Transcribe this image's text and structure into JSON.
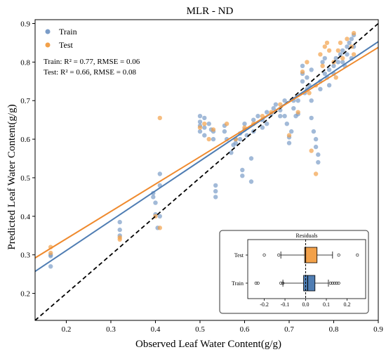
{
  "chart_data": {
    "type": "scatter",
    "title": "MLR - ND",
    "xlabel": "Observed Leaf Water Content(g/g)",
    "ylabel": "Predicted Leaf Water Content(g/g)",
    "xlim": [
      0.13,
      0.9
    ],
    "ylim": [
      0.13,
      0.91
    ],
    "xticks": [
      "0.2",
      "0.3",
      "0.4",
      "0.5",
      "0.6",
      "0.7",
      "0.8",
      "0.9"
    ],
    "yticks": [
      "0.2",
      "0.3",
      "0.4",
      "0.5",
      "0.6",
      "0.7",
      "0.8",
      "0.9"
    ],
    "legend": {
      "position": "top-left",
      "entries": [
        "Train",
        "Test"
      ]
    },
    "stats": {
      "train": "Train: R² = 0.77, RMSE = 0.06",
      "test": "Test: R² = 0.66, RMSE = 0.08"
    },
    "colors": {
      "train": "#7a9cc8",
      "test": "#f2a14a",
      "train_line": "#4f7db3",
      "test_line": "#ef8a2e",
      "identity": "#000000"
    },
    "fit_lines": {
      "train": {
        "x": [
          0.13,
          0.9
        ],
        "y": [
          0.257,
          0.853
        ]
      },
      "test": {
        "x": [
          0.13,
          0.9
        ],
        "y": [
          0.292,
          0.838
        ]
      },
      "identity": {
        "x": [
          0.13,
          0.9
        ],
        "y": [
          0.13,
          0.9
        ]
      }
    },
    "series": [
      {
        "name": "Train",
        "points": [
          [
            0.165,
            0.297
          ],
          [
            0.165,
            0.3
          ],
          [
            0.165,
            0.27
          ],
          [
            0.32,
            0.385
          ],
          [
            0.32,
            0.365
          ],
          [
            0.32,
            0.35
          ],
          [
            0.395,
            0.46
          ],
          [
            0.395,
            0.45
          ],
          [
            0.4,
            0.435
          ],
          [
            0.4,
            0.405
          ],
          [
            0.41,
            0.51
          ],
          [
            0.41,
            0.48
          ],
          [
            0.41,
            0.4
          ],
          [
            0.405,
            0.37
          ],
          [
            0.5,
            0.66
          ],
          [
            0.5,
            0.645
          ],
          [
            0.5,
            0.635
          ],
          [
            0.5,
            0.62
          ],
          [
            0.51,
            0.655
          ],
          [
            0.51,
            0.63
          ],
          [
            0.51,
            0.61
          ],
          [
            0.52,
            0.64
          ],
          [
            0.525,
            0.625
          ],
          [
            0.53,
            0.62
          ],
          [
            0.53,
            0.6
          ],
          [
            0.535,
            0.48
          ],
          [
            0.535,
            0.465
          ],
          [
            0.535,
            0.45
          ],
          [
            0.555,
            0.635
          ],
          [
            0.555,
            0.62
          ],
          [
            0.56,
            0.6
          ],
          [
            0.57,
            0.565
          ],
          [
            0.575,
            0.585
          ],
          [
            0.58,
            0.6
          ],
          [
            0.58,
            0.59
          ],
          [
            0.59,
            0.615
          ],
          [
            0.59,
            0.6
          ],
          [
            0.595,
            0.52
          ],
          [
            0.595,
            0.505
          ],
          [
            0.6,
            0.64
          ],
          [
            0.6,
            0.625
          ],
          [
            0.605,
            0.61
          ],
          [
            0.62,
            0.65
          ],
          [
            0.62,
            0.62
          ],
          [
            0.615,
            0.55
          ],
          [
            0.615,
            0.49
          ],
          [
            0.63,
            0.66
          ],
          [
            0.64,
            0.65
          ],
          [
            0.64,
            0.63
          ],
          [
            0.65,
            0.67
          ],
          [
            0.65,
            0.64
          ],
          [
            0.66,
            0.665
          ],
          [
            0.665,
            0.68
          ],
          [
            0.67,
            0.69
          ],
          [
            0.68,
            0.675
          ],
          [
            0.68,
            0.66
          ],
          [
            0.69,
            0.7
          ],
          [
            0.69,
            0.66
          ],
          [
            0.695,
            0.64
          ],
          [
            0.7,
            0.605
          ],
          [
            0.7,
            0.59
          ],
          [
            0.705,
            0.62
          ],
          [
            0.71,
            0.7
          ],
          [
            0.71,
            0.68
          ],
          [
            0.715,
            0.66
          ],
          [
            0.72,
            0.665
          ],
          [
            0.72,
            0.7
          ],
          [
            0.73,
            0.79
          ],
          [
            0.73,
            0.77
          ],
          [
            0.73,
            0.75
          ],
          [
            0.735,
            0.72
          ],
          [
            0.74,
            0.73
          ],
          [
            0.74,
            0.76
          ],
          [
            0.745,
            0.74
          ],
          [
            0.75,
            0.78
          ],
          [
            0.75,
            0.7
          ],
          [
            0.75,
            0.655
          ],
          [
            0.755,
            0.62
          ],
          [
            0.76,
            0.6
          ],
          [
            0.76,
            0.58
          ],
          [
            0.765,
            0.56
          ],
          [
            0.765,
            0.54
          ],
          [
            0.77,
            0.75
          ],
          [
            0.77,
            0.73
          ],
          [
            0.775,
            0.8
          ],
          [
            0.78,
            0.81
          ],
          [
            0.78,
            0.77
          ],
          [
            0.785,
            0.76
          ],
          [
            0.79,
            0.78
          ],
          [
            0.79,
            0.74
          ],
          [
            0.8,
            0.79
          ],
          [
            0.8,
            0.77
          ],
          [
            0.805,
            0.81
          ],
          [
            0.81,
            0.8
          ],
          [
            0.815,
            0.82
          ],
          [
            0.82,
            0.83
          ],
          [
            0.82,
            0.8
          ],
          [
            0.825,
            0.79
          ],
          [
            0.83,
            0.84
          ],
          [
            0.83,
            0.82
          ],
          [
            0.835,
            0.85
          ],
          [
            0.84,
            0.81
          ],
          [
            0.84,
            0.86
          ],
          [
            0.845,
            0.87
          ],
          [
            0.845,
            0.84
          ]
        ]
      },
      {
        "name": "Test",
        "points": [
          [
            0.165,
            0.32
          ],
          [
            0.165,
            0.305
          ],
          [
            0.32,
            0.345
          ],
          [
            0.32,
            0.34
          ],
          [
            0.41,
            0.655
          ],
          [
            0.41,
            0.37
          ],
          [
            0.4,
            0.4
          ],
          [
            0.5,
            0.63
          ],
          [
            0.51,
            0.64
          ],
          [
            0.52,
            0.6
          ],
          [
            0.53,
            0.625
          ],
          [
            0.56,
            0.64
          ],
          [
            0.58,
            0.6
          ],
          [
            0.6,
            0.63
          ],
          [
            0.62,
            0.64
          ],
          [
            0.64,
            0.66
          ],
          [
            0.66,
            0.67
          ],
          [
            0.68,
            0.69
          ],
          [
            0.7,
            0.61
          ],
          [
            0.72,
            0.67
          ],
          [
            0.73,
            0.775
          ],
          [
            0.74,
            0.8
          ],
          [
            0.745,
            0.72
          ],
          [
            0.75,
            0.57
          ],
          [
            0.76,
            0.51
          ],
          [
            0.76,
            0.74
          ],
          [
            0.77,
            0.82
          ],
          [
            0.775,
            0.79
          ],
          [
            0.78,
            0.84
          ],
          [
            0.785,
            0.85
          ],
          [
            0.79,
            0.83
          ],
          [
            0.8,
            0.8
          ],
          [
            0.805,
            0.76
          ],
          [
            0.81,
            0.83
          ],
          [
            0.815,
            0.85
          ],
          [
            0.82,
            0.81
          ],
          [
            0.83,
            0.86
          ],
          [
            0.84,
            0.84
          ],
          [
            0.845,
            0.875
          ],
          [
            0.845,
            0.82
          ]
        ]
      }
    ],
    "inset": {
      "type": "boxplot",
      "title": "Residuals",
      "xlim": [
        -0.28,
        0.29
      ],
      "xticks": [
        "-0.2",
        "-0.1",
        "0.0",
        "0.1",
        "0.2"
      ],
      "reference_line_x": 0.0,
      "boxes": [
        {
          "name": "Test",
          "q1": -0.005,
          "median": 0.0,
          "q3": 0.055,
          "whisker_low": -0.12,
          "whisker_high": 0.13,
          "outliers": [
            -0.2,
            -0.13,
            0.16,
            0.25
          ]
        },
        {
          "name": "Train",
          "q1": -0.01,
          "median": 0.01,
          "q3": 0.045,
          "whisker_low": -0.11,
          "whisker_high": 0.11,
          "outliers": [
            -0.24,
            -0.23,
            -0.12,
            -0.11,
            0.12,
            0.13,
            0.14,
            0.15,
            0.16
          ]
        }
      ]
    }
  }
}
